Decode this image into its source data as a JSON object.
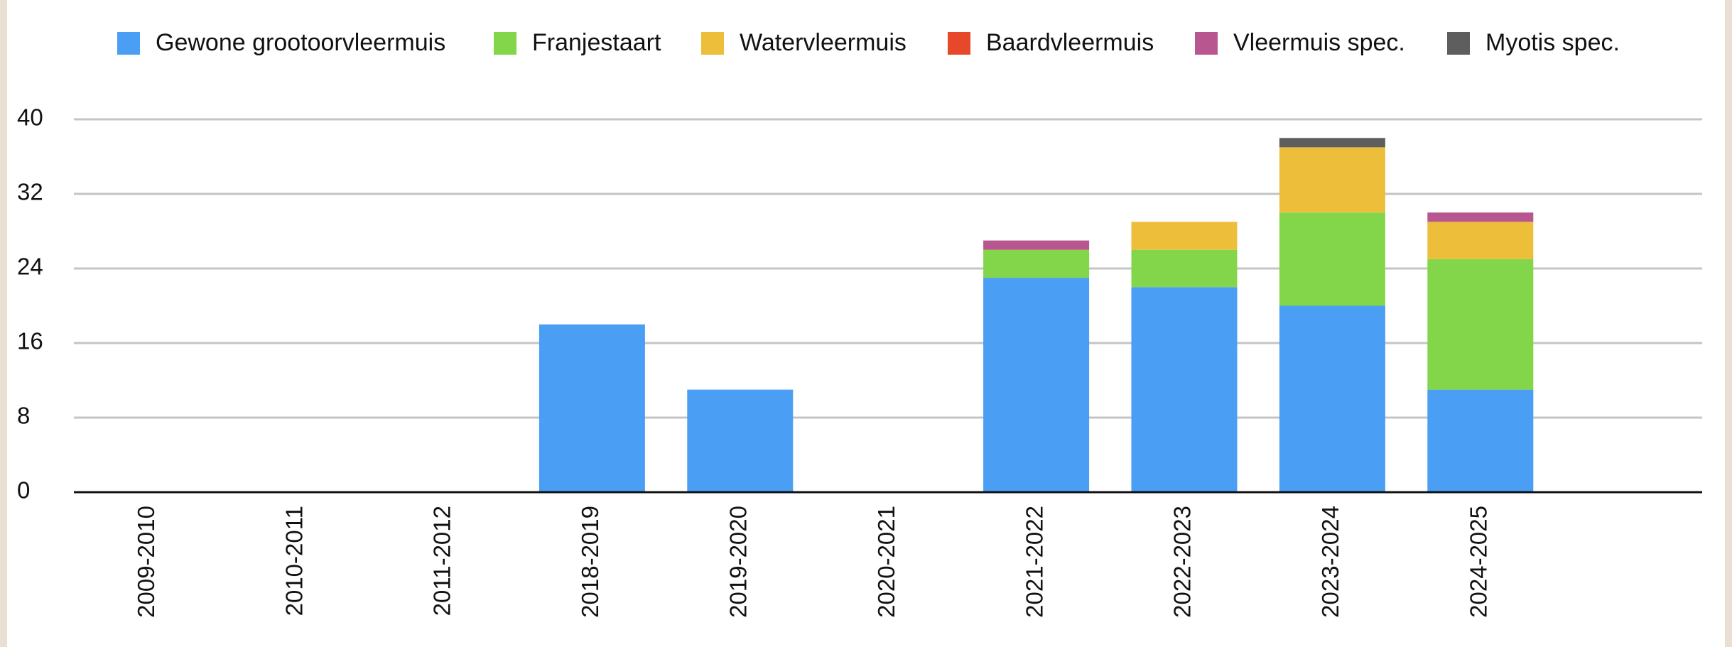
{
  "chart_data": {
    "type": "stacked_bar",
    "categories": [
      "2009-2010",
      "2010-2011",
      "2011-2012",
      "2018-2019",
      "2019-2020",
      "2020-2021",
      "2021-2022",
      "2022-2023",
      "2023-2024",
      "2024-2025"
    ],
    "series": [
      {
        "name": "Gewone grootoorvleermuis",
        "color": "#4a9ff5",
        "values": [
          0,
          0,
          0,
          18,
          11,
          0,
          23,
          22,
          20,
          11
        ]
      },
      {
        "name": "Franjestaart",
        "color": "#83d64a",
        "values": [
          0,
          0,
          0,
          0,
          0,
          0,
          3,
          4,
          10,
          14
        ]
      },
      {
        "name": "Watervleermuis",
        "color": "#edbe3a",
        "values": [
          0,
          0,
          0,
          0,
          0,
          0,
          0,
          3,
          7,
          4
        ]
      },
      {
        "name": "Baardvleermuis",
        "color": "#e8482a",
        "values": [
          0,
          0,
          0,
          0,
          0,
          0,
          0,
          0,
          0,
          0
        ]
      },
      {
        "name": "Vleermuis spec.",
        "color": "#b8578f",
        "values": [
          0,
          0,
          0,
          0,
          0,
          0,
          1,
          0,
          0,
          1
        ]
      },
      {
        "name": "Myotis spec.",
        "color": "#5e5e5e",
        "values": [
          0,
          0,
          0,
          0,
          0,
          0,
          0,
          0,
          1,
          0
        ]
      }
    ],
    "ylim": [
      0,
      40
    ],
    "yticks": [
      0,
      8,
      16,
      24,
      32,
      40
    ],
    "grid": true,
    "legend": "top"
  }
}
